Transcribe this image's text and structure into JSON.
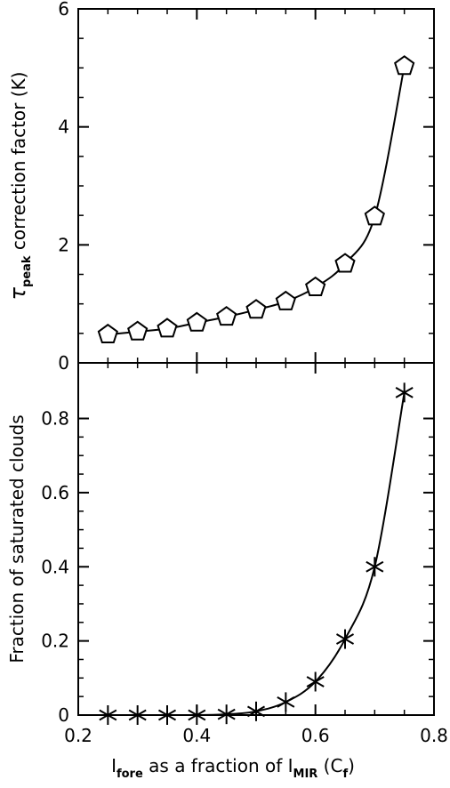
{
  "chart_data": [
    {
      "type": "line",
      "marker": "pentagon",
      "ylabel": {
        "symbol": "τ",
        "sub": "peak",
        "rest": " correction factor (K)"
      },
      "xlim": [
        0.2,
        0.8
      ],
      "ylim": [
        0,
        6
      ],
      "yticks": [
        0,
        2,
        4,
        6
      ],
      "ytick_labels": [
        "0",
        "2",
        "4",
        "6"
      ],
      "x": [
        0.25,
        0.3,
        0.35,
        0.4,
        0.45,
        0.5,
        0.55,
        0.6,
        0.65,
        0.7,
        0.75
      ],
      "y": [
        0.48,
        0.53,
        0.58,
        0.68,
        0.78,
        0.9,
        1.04,
        1.28,
        1.68,
        2.48,
        5.03
      ],
      "grid": false
    },
    {
      "type": "line",
      "marker": "asterisk",
      "ylabel": {
        "text": "Fraction of saturated clouds"
      },
      "xlim": [
        0.2,
        0.8
      ],
      "ylim": [
        0,
        0.95
      ],
      "yticks": [
        0,
        0.2,
        0.4,
        0.6,
        0.8
      ],
      "ytick_labels": [
        "0",
        "0.2",
        "0.4",
        "0.6",
        "0.8"
      ],
      "xticks": [
        0.2,
        0.4,
        0.6,
        0.8
      ],
      "xtick_labels": [
        "0.2",
        "0.4",
        "0.6",
        "0.8"
      ],
      "xlabel": {
        "p1": "I",
        "s1": "fore",
        "p2": " as a fraction of I",
        "s2": "MIR",
        "p3": " (C",
        "s3": "f",
        "p4": ")"
      },
      "x": [
        0.25,
        0.3,
        0.35,
        0.4,
        0.45,
        0.5,
        0.55,
        0.6,
        0.65,
        0.7,
        0.75
      ],
      "y": [
        0.0,
        0.0,
        0.0,
        0.0,
        0.002,
        0.01,
        0.035,
        0.09,
        0.205,
        0.4,
        0.87
      ],
      "grid": false
    }
  ]
}
